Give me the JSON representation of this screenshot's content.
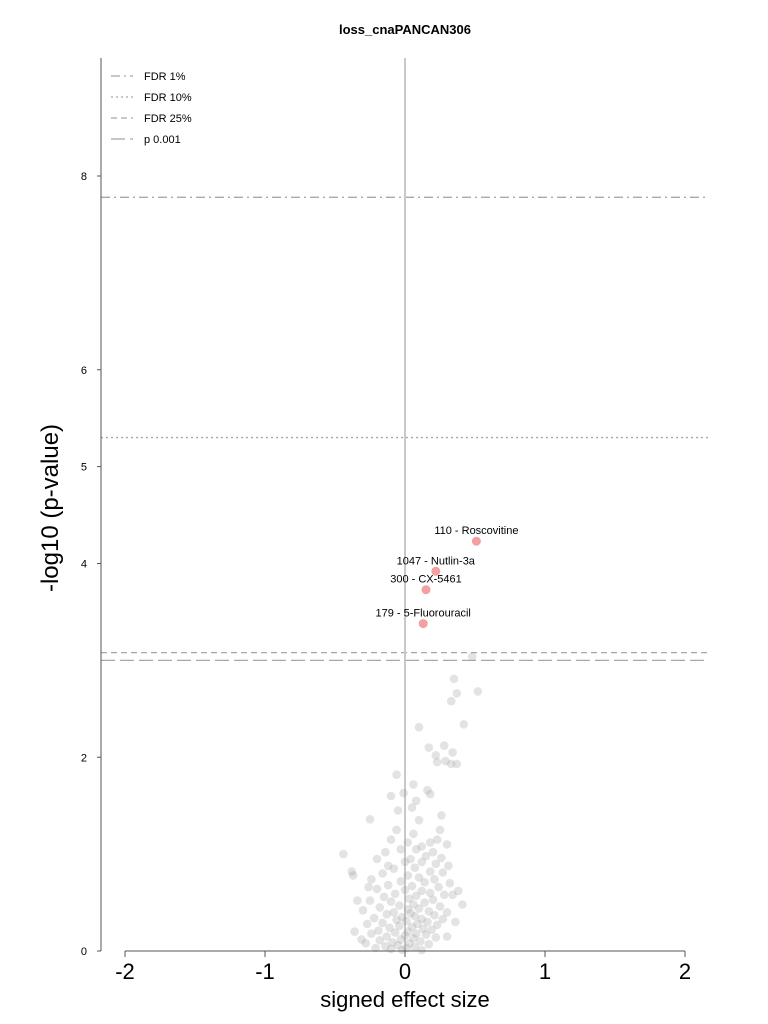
{
  "chart_data": {
    "type": "scatter",
    "title": "loss_cnaPANCAN306",
    "xlabel": "signed effect size",
    "ylabel": "-log10 (p-value)",
    "xlim": [
      -2.2,
      2.2
    ],
    "ylim": [
      0,
      9.2
    ],
    "x_ticks": [
      "-2",
      "-1",
      "0",
      "1",
      "2"
    ],
    "y_ticks": [
      "0",
      "2",
      "4",
      "5",
      "6",
      "8"
    ],
    "y_tick_values": [
      0,
      2,
      4,
      5,
      6,
      8
    ],
    "thresholds": [
      {
        "name": "FDR 1%",
        "y": 7.78,
        "style": "dashdot"
      },
      {
        "name": "FDR 10%",
        "y": 5.3,
        "style": "dotted"
      },
      {
        "name": "FDR 25%",
        "y": 3.08,
        "style": "dashed"
      },
      {
        "name": "p 0.001",
        "y": 3.0,
        "style": "longdash"
      }
    ],
    "legend_position": "top-left",
    "highlight_color": "#f4a0a0",
    "background_point_color": "#9a9a9a",
    "highlighted": [
      {
        "label": "110 - Roscovitine",
        "x": 0.51,
        "y": 4.23
      },
      {
        "label": "1047 - Nutlin-3a",
        "x": 0.22,
        "y": 3.92
      },
      {
        "label": "300 - CX-5461",
        "x": 0.15,
        "y": 3.73
      },
      {
        "label": "179 - 5-Fluorouracil",
        "x": 0.13,
        "y": 3.38
      }
    ],
    "points": [
      [
        0.48,
        3.04
      ],
      [
        0.35,
        2.81
      ],
      [
        0.37,
        2.66
      ],
      [
        0.52,
        2.68
      ],
      [
        0.33,
        2.58
      ],
      [
        0.42,
        2.34
      ],
      [
        0.1,
        2.31
      ],
      [
        0.28,
        2.12
      ],
      [
        0.17,
        2.1
      ],
      [
        0.34,
        2.05
      ],
      [
        0.22,
        2.02
      ],
      [
        0.29,
        1.96
      ],
      [
        0.23,
        1.95
      ],
      [
        0.33,
        1.93
      ],
      [
        0.37,
        1.93
      ],
      [
        -0.06,
        1.82
      ],
      [
        0.06,
        1.72
      ],
      [
        0.16,
        1.66
      ],
      [
        -0.01,
        1.63
      ],
      [
        0.18,
        1.62
      ],
      [
        -0.1,
        1.6
      ],
      [
        0.08,
        1.55
      ],
      [
        0.05,
        1.48
      ],
      [
        -0.05,
        1.45
      ],
      [
        -0.25,
        1.36
      ],
      [
        0.25,
        1.25
      ],
      [
        0.06,
        1.21
      ],
      [
        -0.1,
        1.15
      ],
      [
        0.23,
        1.15
      ],
      [
        0.18,
        1.12
      ],
      [
        0.02,
        1.12
      ],
      [
        0.12,
        1.08
      ],
      [
        0.3,
        1.1
      ],
      [
        0.08,
        1.05
      ],
      [
        -0.03,
        1.05
      ],
      [
        0.2,
        1.02
      ],
      [
        -0.14,
        1.02
      ],
      [
        0.15,
        0.98
      ],
      [
        0.26,
        0.96
      ],
      [
        0.04,
        0.95
      ],
      [
        -0.44,
        1.0
      ],
      [
        0.0,
        0.92
      ],
      [
        0.12,
        0.92
      ],
      [
        -0.2,
        0.95
      ],
      [
        0.22,
        0.9
      ],
      [
        0.31,
        0.88
      ],
      [
        0.07,
        0.86
      ],
      [
        -0.08,
        0.85
      ],
      [
        -0.38,
        0.82
      ],
      [
        -0.37,
        0.78
      ],
      [
        0.18,
        0.82
      ],
      [
        0.27,
        0.81
      ],
      [
        -0.16,
        0.8
      ],
      [
        0.02,
        0.78
      ],
      [
        0.1,
        0.76
      ],
      [
        -0.24,
        0.74
      ],
      [
        0.21,
        0.74
      ],
      [
        -0.03,
        0.72
      ],
      [
        0.14,
        0.71
      ],
      [
        0.32,
        0.7
      ],
      [
        -0.12,
        0.68
      ],
      [
        0.05,
        0.67
      ],
      [
        0.24,
        0.66
      ],
      [
        -0.2,
        0.64
      ],
      [
        0.0,
        0.63
      ],
      [
        0.12,
        0.62
      ],
      [
        0.18,
        0.6
      ],
      [
        -0.07,
        0.59
      ],
      [
        0.28,
        0.58
      ],
      [
        0.08,
        0.57
      ],
      [
        -0.15,
        0.56
      ],
      [
        0.34,
        0.58
      ],
      [
        0.03,
        0.54
      ],
      [
        0.2,
        0.53
      ],
      [
        -0.25,
        0.52
      ],
      [
        -0.1,
        0.51
      ],
      [
        0.14,
        0.5
      ],
      [
        0.06,
        0.48
      ],
      [
        -0.04,
        0.47
      ],
      [
        0.25,
        0.46
      ],
      [
        -0.18,
        0.45
      ],
      [
        0.1,
        0.44
      ],
      [
        0.02,
        0.43
      ],
      [
        -0.3,
        0.42
      ],
      [
        0.17,
        0.41
      ],
      [
        -0.08,
        0.4
      ],
      [
        0.3,
        0.4
      ],
      [
        0.04,
        0.39
      ],
      [
        -0.13,
        0.38
      ],
      [
        0.21,
        0.37
      ],
      [
        0.07,
        0.36
      ],
      [
        -0.02,
        0.35
      ],
      [
        -0.22,
        0.34
      ],
      [
        0.12,
        0.33
      ],
      [
        0.27,
        0.33
      ],
      [
        -0.06,
        0.32
      ],
      [
        0.01,
        0.31
      ],
      [
        0.16,
        0.3
      ],
      [
        -0.16,
        0.29
      ],
      [
        0.09,
        0.28
      ],
      [
        -0.27,
        0.28
      ],
      [
        0.23,
        0.27
      ],
      [
        -0.04,
        0.26
      ],
      [
        0.05,
        0.25
      ],
      [
        -0.11,
        0.24
      ],
      [
        0.13,
        0.23
      ],
      [
        0.19,
        0.22
      ],
      [
        -0.19,
        0.21
      ],
      [
        0.02,
        0.2
      ],
      [
        -0.07,
        0.19
      ],
      [
        0.08,
        0.18
      ],
      [
        -0.24,
        0.18
      ],
      [
        0.15,
        0.17
      ],
      [
        0.0,
        0.16
      ],
      [
        -0.13,
        0.15
      ],
      [
        0.22,
        0.14
      ],
      [
        0.06,
        0.13
      ],
      [
        -0.03,
        0.12
      ],
      [
        -0.18,
        0.11
      ],
      [
        0.11,
        0.1
      ],
      [
        -0.09,
        0.09
      ],
      [
        0.03,
        0.08
      ],
      [
        -0.28,
        0.08
      ],
      [
        0.17,
        0.07
      ],
      [
        -0.05,
        0.06
      ],
      [
        -0.14,
        0.05
      ],
      [
        0.07,
        0.04
      ],
      [
        0.01,
        0.03
      ],
      [
        -0.21,
        0.03
      ],
      [
        -0.1,
        0.02
      ],
      [
        0.12,
        0.01
      ],
      [
        -0.02,
        0.01
      ],
      [
        -0.36,
        0.2
      ],
      [
        -0.34,
        0.52
      ],
      [
        0.36,
        0.3
      ],
      [
        0.38,
        0.62
      ],
      [
        -0.12,
        0.88
      ],
      [
        0.26,
        1.4
      ],
      [
        0.3,
        0.15
      ],
      [
        -0.31,
        0.12
      ],
      [
        0.41,
        0.48
      ],
      [
        -0.26,
        0.66
      ],
      [
        0.1,
        1.35
      ],
      [
        -0.06,
        1.25
      ]
    ]
  }
}
